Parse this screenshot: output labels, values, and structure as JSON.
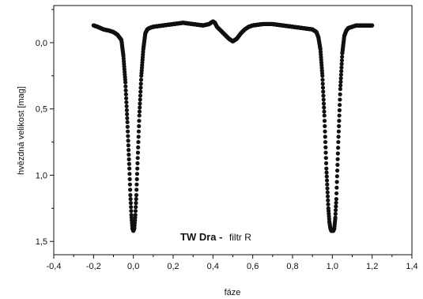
{
  "chart_data": {
    "type": "scatter",
    "xlabel": "fáze",
    "ylabel": "hvězdná velikost [mag]",
    "xlim": [
      -0.4,
      1.4
    ],
    "ylim": [
      1.6,
      -0.28
    ],
    "y_inverted": true,
    "grid": false,
    "x_ticks": [
      "-0,4",
      "-0,2",
      "0,0",
      "0,2",
      "0,4",
      "0,6",
      "0,8",
      "1,0",
      "1,2",
      "1,4"
    ],
    "y_ticks": [
      "0,0",
      "0,5",
      "1,0",
      "1,5"
    ],
    "annotation": {
      "bold": "TW Dra -",
      "normal": "filtr R"
    },
    "color": "#111111",
    "series": [
      {
        "x": [
          -0.2,
          -0.18,
          -0.15,
          -0.12,
          -0.1,
          -0.08,
          -0.06,
          -0.05,
          -0.04,
          -0.03,
          -0.02,
          -0.015,
          -0.01,
          -0.005,
          0.0,
          0.005,
          0.01,
          0.015,
          0.02,
          0.03,
          0.04,
          0.05,
          0.06,
          0.07,
          0.08,
          0.1,
          0.15,
          0.2,
          0.25,
          0.3,
          0.35,
          0.38,
          0.4,
          0.41,
          0.42,
          0.44,
          0.46,
          0.48,
          0.5,
          0.52,
          0.54,
          0.56,
          0.58,
          0.6,
          0.65,
          0.7,
          0.75,
          0.8,
          0.85,
          0.9,
          0.92,
          0.93,
          0.94,
          0.95,
          0.96,
          0.97,
          0.98,
          0.985,
          0.99,
          0.995,
          1.0,
          1.005,
          1.01,
          1.015,
          1.02,
          1.03,
          1.04,
          1.05,
          1.06,
          1.07,
          1.08,
          1.1,
          1.12,
          1.15,
          1.18,
          1.2
        ],
        "y": [
          -0.13,
          -0.12,
          -0.1,
          -0.09,
          -0.08,
          -0.06,
          -0.02,
          0.1,
          0.3,
          0.6,
          0.95,
          1.15,
          1.3,
          1.4,
          1.42,
          1.4,
          1.3,
          1.15,
          0.95,
          0.55,
          0.25,
          0.05,
          -0.07,
          -0.1,
          -0.11,
          -0.12,
          -0.13,
          -0.14,
          -0.15,
          -0.14,
          -0.13,
          -0.14,
          -0.16,
          -0.15,
          -0.12,
          -0.09,
          -0.06,
          -0.03,
          -0.01,
          -0.03,
          -0.07,
          -0.1,
          -0.12,
          -0.13,
          -0.14,
          -0.14,
          -0.13,
          -0.12,
          -0.11,
          -0.1,
          -0.08,
          -0.04,
          0.05,
          0.25,
          0.55,
          0.95,
          1.25,
          1.35,
          1.4,
          1.42,
          1.42,
          1.42,
          1.4,
          1.32,
          1.18,
          0.75,
          0.35,
          0.08,
          -0.05,
          -0.09,
          -0.11,
          -0.12,
          -0.13,
          -0.13,
          -0.13,
          -0.13
        ]
      }
    ]
  }
}
